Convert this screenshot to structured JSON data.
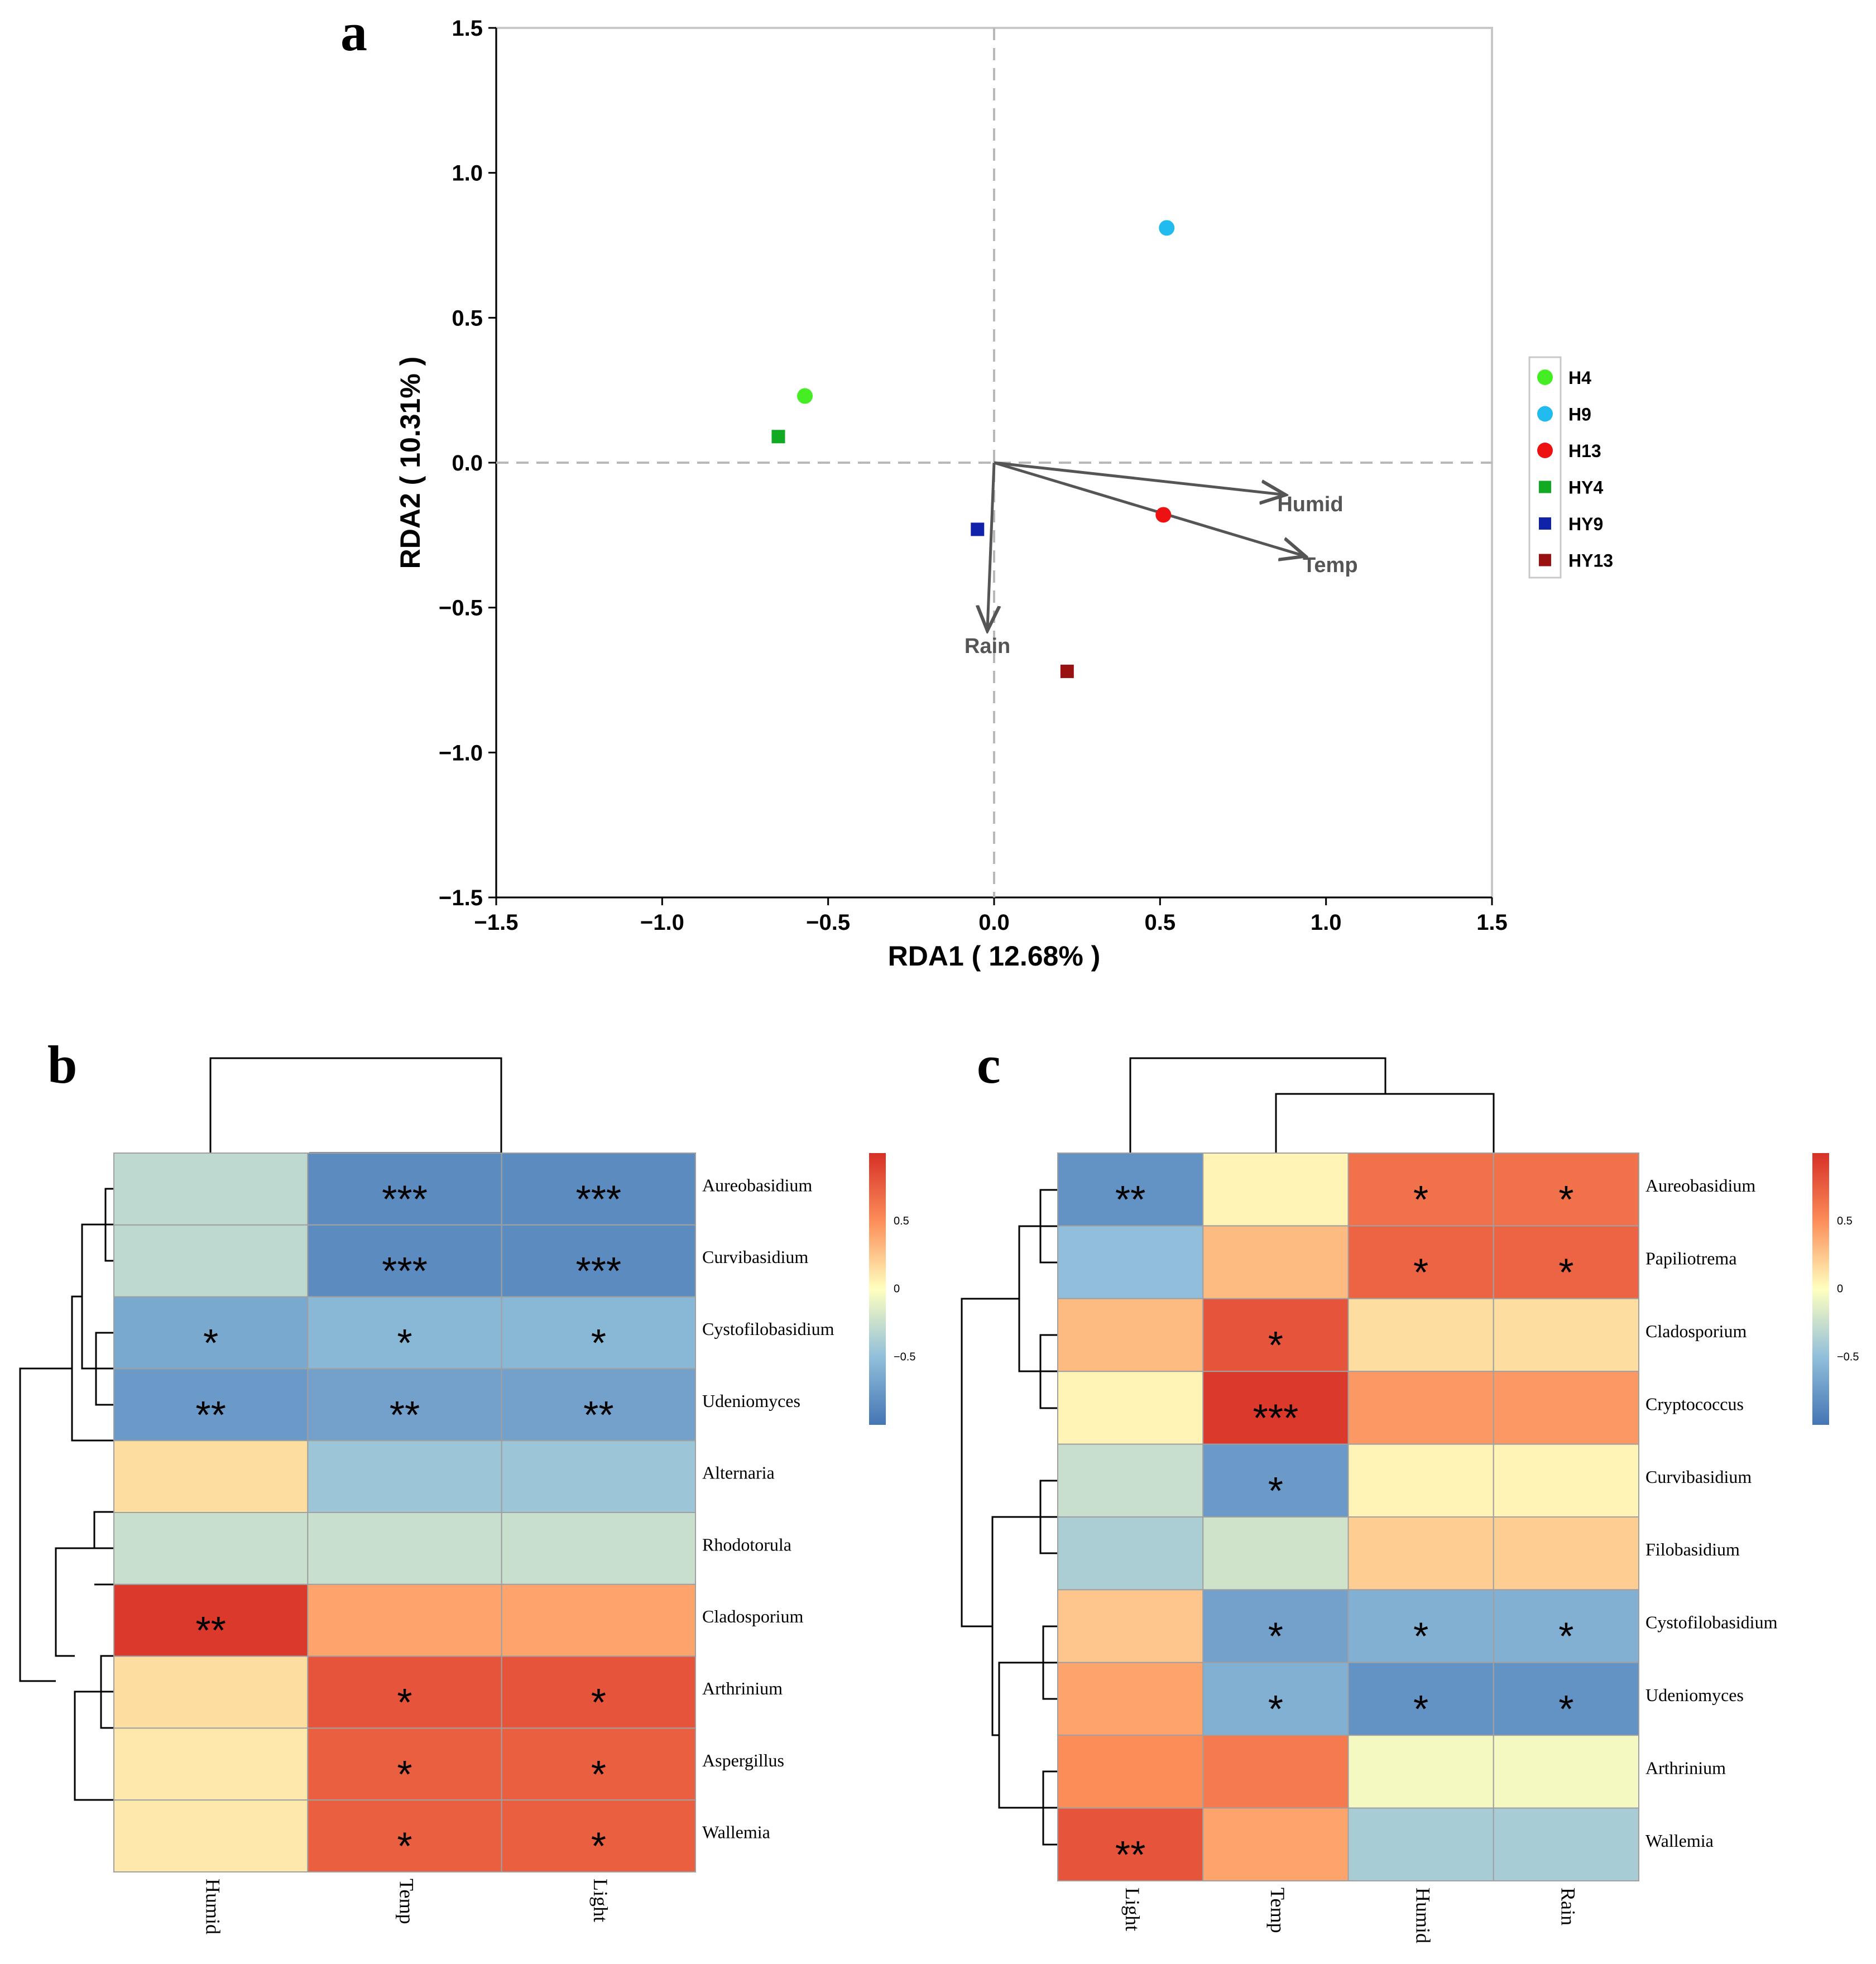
{
  "chart_data": [
    {
      "type": "scatter",
      "panel": "a",
      "xlabel": "RDA1 ( 12.68% )",
      "ylabel": "RDA2 ( 10.31% )",
      "xlim": [
        -1.5,
        1.5
      ],
      "ylim": [
        -1.5,
        1.5
      ],
      "xticks": [
        "−1.5",
        "−1.0",
        "−0.5",
        "0.0",
        "0.5",
        "1.0",
        "1.5"
      ],
      "yticks": [
        "1.5",
        "1.0",
        "0.5",
        "0.0",
        "−0.5",
        "−1.0",
        "−1.5"
      ],
      "points": [
        {
          "name": "H4",
          "x": -0.57,
          "y": 0.23,
          "shape": "circle",
          "color": "#44ee22"
        },
        {
          "name": "H9",
          "x": 0.52,
          "y": 0.81,
          "shape": "circle",
          "color": "#22bbf0"
        },
        {
          "name": "H13",
          "x": 0.51,
          "y": -0.18,
          "shape": "circle",
          "color": "#ee1111"
        },
        {
          "name": "HY4",
          "x": -0.65,
          "y": 0.09,
          "shape": "square",
          "color": "#11aa22"
        },
        {
          "name": "HY9",
          "x": -0.05,
          "y": -0.23,
          "shape": "square",
          "color": "#1122aa"
        },
        {
          "name": "HY13",
          "x": 0.22,
          "y": -0.72,
          "shape": "square",
          "color": "#991111"
        }
      ],
      "arrows": [
        {
          "name": "Humid",
          "x": 0.87,
          "y": -0.11
        },
        {
          "name": "Temp",
          "x": 0.93,
          "y": -0.32
        },
        {
          "name": "Rain",
          "x": -0.02,
          "y": -0.57
        }
      ],
      "legend": [
        "H4",
        "H9",
        "H13",
        "HY4",
        "HY9",
        "HY13"
      ],
      "legend_position": "right",
      "reference_lines": "dashed at x=0 and y=0"
    },
    {
      "type": "heatmap",
      "panel": "b",
      "columns": [
        "Humid",
        "Temp",
        "Light"
      ],
      "rows": [
        "Aureobasidium",
        "Curvibasidium",
        "Cystofilobasidium",
        "Udeniomyces",
        "Alternaria",
        "Rhodotorula",
        "Cladosporium",
        "Arthrinium",
        "Aspergillus",
        "Wallemia"
      ],
      "values": [
        [
          -0.3,
          -0.85,
          -0.85
        ],
        [
          -0.3,
          -0.85,
          -0.85
        ],
        [
          -0.65,
          -0.55,
          -0.55
        ],
        [
          -0.75,
          -0.7,
          -0.7
        ],
        [
          0.15,
          -0.45,
          -0.45
        ],
        [
          -0.25,
          -0.25,
          -0.25
        ],
        [
          0.95,
          0.4,
          0.4
        ],
        [
          0.15,
          0.8,
          0.8
        ],
        [
          0.1,
          0.75,
          0.75
        ],
        [
          0.1,
          0.75,
          0.75
        ]
      ],
      "significance": [
        [
          "",
          "***",
          "***"
        ],
        [
          "",
          "***",
          "***"
        ],
        [
          "*",
          "*",
          "*"
        ],
        [
          "**",
          "**",
          "**"
        ],
        [
          "",
          "",
          ""
        ],
        [
          "",
          "",
          ""
        ],
        [
          "**",
          "",
          ""
        ],
        [
          "",
          "*",
          "*"
        ],
        [
          "",
          "*",
          "*"
        ],
        [
          "",
          "*",
          "*"
        ]
      ],
      "colorbar_ticks": [
        "0.5",
        "0",
        "−0.5"
      ]
    },
    {
      "type": "heatmap",
      "panel": "c",
      "columns": [
        "Light",
        "Temp",
        "Humid",
        "Rain"
      ],
      "rows": [
        "Aureobasidium",
        "Papiliotrema",
        "Cladosporium",
        "Cryptococcus",
        "Curvibasidium",
        "Filobasidium",
        "Cystofilobasidium",
        "Udeniomyces",
        "Arthrinium",
        "Wallemia"
      ],
      "values": [
        [
          -0.8,
          0.05,
          0.65,
          0.65
        ],
        [
          -0.5,
          0.3,
          0.72,
          0.72
        ],
        [
          0.3,
          0.8,
          0.15,
          0.15
        ],
        [
          0.05,
          0.95,
          0.45,
          0.45
        ],
        [
          -0.25,
          -0.75,
          0.05,
          0.05
        ],
        [
          -0.38,
          -0.22,
          0.22,
          0.22
        ],
        [
          0.25,
          -0.7,
          -0.6,
          -0.6
        ],
        [
          0.4,
          -0.6,
          -0.8,
          -0.8
        ],
        [
          0.5,
          0.6,
          -0.05,
          -0.05
        ],
        [
          0.8,
          0.4,
          -0.4,
          -0.4
        ]
      ],
      "significance": [
        [
          "**",
          "",
          "*",
          "*"
        ],
        [
          "",
          "",
          "*",
          "*"
        ],
        [
          "",
          "*",
          "",
          ""
        ],
        [
          "",
          "***",
          "",
          ""
        ],
        [
          "",
          "*",
          "",
          ""
        ],
        [
          "",
          "",
          "",
          ""
        ],
        [
          "",
          "*",
          "*",
          "*"
        ],
        [
          "",
          "*",
          "*",
          "*"
        ],
        [
          "",
          "",
          "",
          ""
        ],
        [
          "**",
          "",
          "",
          ""
        ]
      ],
      "colorbar_ticks": [
        "0.5",
        "0",
        "−0.5"
      ]
    }
  ],
  "panel_letters": {
    "a": "a",
    "b": "b",
    "c": "c"
  },
  "colors": {
    "low": "#4575b4",
    "mid": "#ffffbf",
    "high": "#d73027"
  }
}
